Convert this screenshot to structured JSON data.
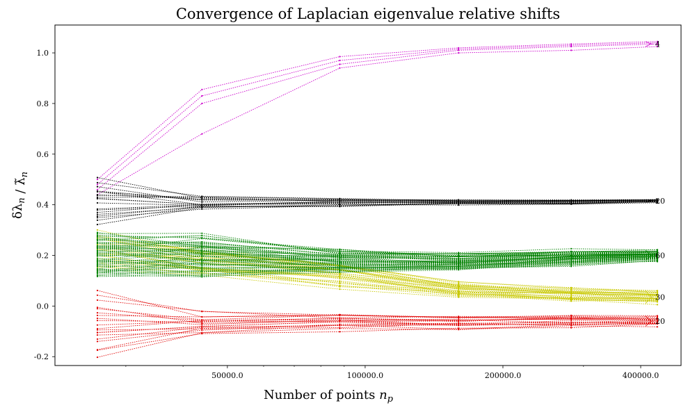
{
  "chart_data": {
    "type": "line",
    "title": "Convergence of Laplacian eigenvalue relative shifts",
    "xlabel": "Number of points n_p",
    "ylabel": "δλ_n / λ̃_n",
    "xscale": "log",
    "x_points": [
      26000,
      44000,
      88000,
      160000,
      282000,
      435000
    ],
    "xlim": [
      21000,
      490000
    ],
    "ylim": [
      -0.235,
      1.11
    ],
    "x_ticks": [
      {
        "value": 50000,
        "label": "50000.0"
      },
      {
        "value": 100000,
        "label": "100000.0"
      },
      {
        "value": 200000,
        "label": "200000.0"
      },
      {
        "value": 400000,
        "label": "400000.0"
      }
    ],
    "y_ticks": [
      {
        "value": -0.2,
        "label": "-0.2"
      },
      {
        "value": 0.0,
        "label": "0.0"
      },
      {
        "value": 0.2,
        "label": "0.2"
      },
      {
        "value": 0.4,
        "label": "0.4"
      },
      {
        "value": 0.6,
        "label": "0.6"
      },
      {
        "value": 0.8,
        "label": "0.8"
      },
      {
        "value": 1.0,
        "label": "1.0"
      }
    ],
    "groups": [
      {
        "name": "magenta",
        "color": "#cc00cc",
        "label": "4",
        "count": 4,
        "start_lo": 0.44,
        "start_hi": 0.5,
        "end_lo": 1.025,
        "end_hi": 1.045,
        "lines": [
          {
            "values": [
              0.44,
              0.68,
              0.94,
              1.0,
              1.01,
              1.025
            ]
          },
          {
            "values": [
              0.46,
              0.8,
              0.955,
              1.01,
              1.025,
              1.035
            ]
          },
          {
            "values": [
              0.48,
              0.83,
              0.97,
              1.015,
              1.03,
              1.04
            ]
          },
          {
            "values": [
              0.5,
              0.855,
              0.985,
              1.02,
              1.035,
              1.045
            ]
          }
        ]
      },
      {
        "name": "black",
        "color": "#000000",
        "label": "20",
        "count": 20,
        "start_lo": 0.36,
        "start_hi": 0.55,
        "end_lo": 0.41,
        "end_hi": 0.42,
        "mean": [
          0.41,
          0.405,
          0.41,
          0.41,
          0.412,
          0.415
        ],
        "spread": [
          0.18,
          0.06,
          0.035,
          0.02,
          0.02,
          0.012
        ]
      },
      {
        "name": "yellow",
        "color": "#c8c800",
        "label": "30",
        "count": 30,
        "start_lo": 0.16,
        "start_hi": 0.3,
        "end_lo": 0.01,
        "end_hi": 0.06,
        "mean": [
          0.22,
          0.17,
          0.12,
          0.065,
          0.045,
          0.035
        ],
        "spread": [
          0.14,
          0.12,
          0.1,
          0.06,
          0.05,
          0.05
        ]
      },
      {
        "name": "green",
        "color": "#008000",
        "label": "60",
        "count": 60,
        "start_lo": 0.14,
        "start_hi": 0.31,
        "end_lo": 0.18,
        "end_hi": 0.22,
        "mean": [
          0.2,
          0.2,
          0.18,
          0.175,
          0.19,
          0.2
        ],
        "spread": [
          0.17,
          0.16,
          0.09,
          0.07,
          0.06,
          0.04
        ]
      },
      {
        "name": "red",
        "color": "#e00000",
        "label": "20",
        "count": 20,
        "start_lo": -0.18,
        "start_hi": 0.06,
        "end_lo": -0.08,
        "end_hi": -0.04,
        "mean": [
          -0.07,
          -0.07,
          -0.06,
          -0.065,
          -0.06,
          -0.06
        ],
        "spread": [
          0.24,
          0.1,
          0.07,
          0.06,
          0.05,
          0.04
        ]
      }
    ]
  }
}
